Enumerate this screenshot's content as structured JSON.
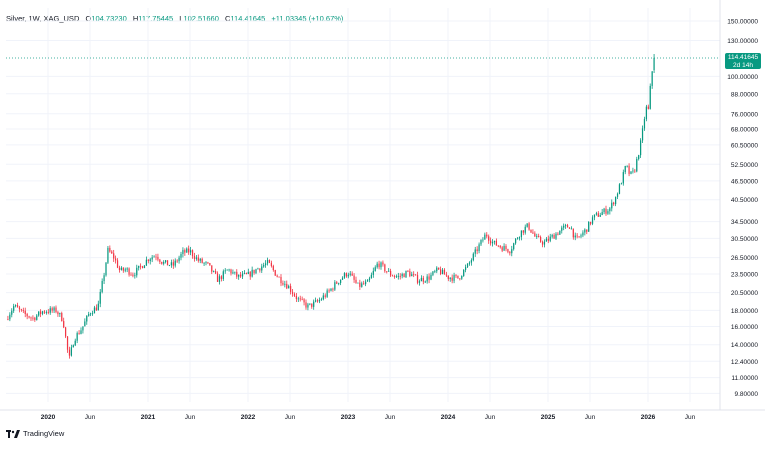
{
  "legend": {
    "symbol": "Silver, 1W, XAG_USD",
    "o_label": "O",
    "o_value": "104.73230",
    "h_label": "H",
    "h_value": "117.75445",
    "l_label": "L",
    "l_value": "102.51660",
    "c_label": "C",
    "c_value": "114.41645",
    "change": "+11.03345 (+10.67%)"
  },
  "current_price": {
    "value": "114.41645",
    "countdown": "2d 14h"
  },
  "branding": {
    "name": "TradingView"
  },
  "colors": {
    "up": "#089981",
    "down": "#f23645",
    "up_faded": "#7fcfbc",
    "down_faded": "#f5a3ab",
    "grid": "#f0f3fa",
    "axis_text": "#131722"
  },
  "chart_data": {
    "type": "candlestick",
    "symbol": "XAG_USD",
    "timeframe": "1W",
    "title": "Silver, 1W, XAG_USD",
    "y_scale": "log",
    "y_tick_labels": [
      "150.00000",
      "130.00000",
      "114.41645",
      "100.00000",
      "88.00000",
      "76.00000",
      "68.00000",
      "60.50000",
      "52.50000",
      "46.50000",
      "40.50000",
      "34.50000",
      "30.50000",
      "26.50000",
      "23.50000",
      "20.50000",
      "18.00000",
      "16.00000",
      "14.00000",
      "12.40000",
      "11.00000",
      "9.80000"
    ],
    "y_ticks": [
      150,
      130,
      100,
      88,
      76,
      68,
      60.5,
      52.5,
      46.5,
      40.5,
      34.5,
      30.5,
      26.5,
      23.5,
      20.5,
      18,
      16,
      14,
      12.4,
      11,
      9.8
    ],
    "x_range": [
      2019.58,
      2026.72
    ],
    "x_ticks": [
      {
        "label": "2020",
        "t": 2020.0
      },
      {
        "label": "Jun",
        "t": 2020.42
      },
      {
        "label": "2021",
        "t": 2021.0
      },
      {
        "label": "Jun",
        "t": 2021.42
      },
      {
        "label": "2022",
        "t": 2022.0
      },
      {
        "label": "Jun",
        "t": 2022.42
      },
      {
        "label": "2023",
        "t": 2023.0
      },
      {
        "label": "Jun",
        "t": 2023.42
      },
      {
        "label": "2024",
        "t": 2024.0
      },
      {
        "label": "Jun",
        "t": 2024.42
      },
      {
        "label": "2025",
        "t": 2025.0
      },
      {
        "label": "Jun",
        "t": 2025.42
      },
      {
        "label": "2026",
        "t": 2026.0
      },
      {
        "label": "Jun",
        "t": 2026.42
      }
    ],
    "last_close": 114.41645,
    "closes_path": [
      {
        "t": 2019.58,
        "v": 16.9
      },
      {
        "t": 2019.66,
        "v": 18.6
      },
      {
        "t": 2019.75,
        "v": 17.6
      },
      {
        "t": 2019.85,
        "v": 17.0
      },
      {
        "t": 2019.95,
        "v": 17.9
      },
      {
        "t": 2020.08,
        "v": 18.0
      },
      {
        "t": 2020.15,
        "v": 16.8
      },
      {
        "t": 2020.21,
        "v": 12.5
      },
      {
        "t": 2020.26,
        "v": 14.6
      },
      {
        "t": 2020.34,
        "v": 15.8
      },
      {
        "t": 2020.42,
        "v": 17.8
      },
      {
        "t": 2020.5,
        "v": 18.5
      },
      {
        "t": 2020.56,
        "v": 23.5
      },
      {
        "t": 2020.6,
        "v": 28.0
      },
      {
        "t": 2020.66,
        "v": 26.5
      },
      {
        "t": 2020.72,
        "v": 24.0
      },
      {
        "t": 2020.78,
        "v": 24.3
      },
      {
        "t": 2020.85,
        "v": 23.5
      },
      {
        "t": 2020.92,
        "v": 24.6
      },
      {
        "t": 2021.0,
        "v": 26.3
      },
      {
        "t": 2021.08,
        "v": 27.0
      },
      {
        "t": 2021.15,
        "v": 25.5
      },
      {
        "t": 2021.25,
        "v": 25.0
      },
      {
        "t": 2021.35,
        "v": 27.5
      },
      {
        "t": 2021.42,
        "v": 27.8
      },
      {
        "t": 2021.5,
        "v": 26.0
      },
      {
        "t": 2021.6,
        "v": 25.0
      },
      {
        "t": 2021.7,
        "v": 22.5
      },
      {
        "t": 2021.8,
        "v": 24.3
      },
      {
        "t": 2021.9,
        "v": 23.0
      },
      {
        "t": 2022.0,
        "v": 23.3
      },
      {
        "t": 2022.1,
        "v": 24.5
      },
      {
        "t": 2022.2,
        "v": 25.5
      },
      {
        "t": 2022.3,
        "v": 23.0
      },
      {
        "t": 2022.4,
        "v": 21.5
      },
      {
        "t": 2022.5,
        "v": 19.5
      },
      {
        "t": 2022.6,
        "v": 18.5
      },
      {
        "t": 2022.7,
        "v": 19.2
      },
      {
        "t": 2022.8,
        "v": 20.5
      },
      {
        "t": 2022.9,
        "v": 22.3
      },
      {
        "t": 2023.0,
        "v": 23.8
      },
      {
        "t": 2023.1,
        "v": 21.5
      },
      {
        "t": 2023.2,
        "v": 22.0
      },
      {
        "t": 2023.3,
        "v": 25.5
      },
      {
        "t": 2023.42,
        "v": 23.5
      },
      {
        "t": 2023.5,
        "v": 23.0
      },
      {
        "t": 2023.6,
        "v": 23.8
      },
      {
        "t": 2023.7,
        "v": 22.5
      },
      {
        "t": 2023.8,
        "v": 22.8
      },
      {
        "t": 2023.9,
        "v": 24.2
      },
      {
        "t": 2024.0,
        "v": 23.0
      },
      {
        "t": 2024.1,
        "v": 22.8
      },
      {
        "t": 2024.2,
        "v": 25.0
      },
      {
        "t": 2024.3,
        "v": 28.5
      },
      {
        "t": 2024.38,
        "v": 31.5
      },
      {
        "t": 2024.45,
        "v": 29.5
      },
      {
        "t": 2024.55,
        "v": 28.5
      },
      {
        "t": 2024.62,
        "v": 28.0
      },
      {
        "t": 2024.72,
        "v": 31.8
      },
      {
        "t": 2024.8,
        "v": 33.5
      },
      {
        "t": 2024.88,
        "v": 30.5
      },
      {
        "t": 2024.96,
        "v": 29.5
      },
      {
        "t": 2025.05,
        "v": 31.0
      },
      {
        "t": 2025.15,
        "v": 32.8
      },
      {
        "t": 2025.22,
        "v": 33.5
      },
      {
        "t": 2025.28,
        "v": 30.0
      },
      {
        "t": 2025.38,
        "v": 32.5
      },
      {
        "t": 2025.45,
        "v": 35.5
      },
      {
        "t": 2025.55,
        "v": 37.0
      },
      {
        "t": 2025.62,
        "v": 38.0
      },
      {
        "t": 2025.68,
        "v": 41.5
      },
      {
        "t": 2025.74,
        "v": 47.0
      },
      {
        "t": 2025.78,
        "v": 52.0
      },
      {
        "t": 2025.82,
        "v": 48.5
      },
      {
        "t": 2025.86,
        "v": 49.5
      },
      {
        "t": 2025.9,
        "v": 56.0
      },
      {
        "t": 2025.93,
        "v": 62.0
      },
      {
        "t": 2025.96,
        "v": 72.0
      },
      {
        "t": 2025.98,
        "v": 80.0
      },
      {
        "t": 2026.0,
        "v": 76.0
      },
      {
        "t": 2026.02,
        "v": 90.0
      },
      {
        "t": 2026.04,
        "v": 103.5
      },
      {
        "t": 2026.06,
        "v": 114.4
      }
    ]
  }
}
